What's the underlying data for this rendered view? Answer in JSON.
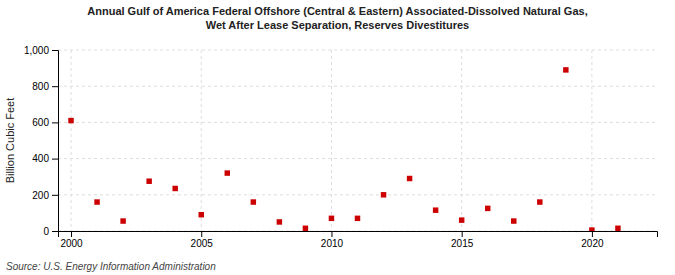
{
  "chart_data": {
    "type": "scatter",
    "title": "Annual Gulf of America Federal Offshore (Central & Eastern) Associated-Dissolved Natural Gas,\nWet After Lease Separation, Reserves Divestitures",
    "ylabel": "Billion Cubic Feet",
    "source": "Source: U.S. Energy Information Administration",
    "x": [
      2000,
      2001,
      2002,
      2003,
      2004,
      2005,
      2006,
      2007,
      2008,
      2009,
      2010,
      2011,
      2012,
      2013,
      2014,
      2015,
      2016,
      2017,
      2018,
      2019,
      2020,
      2021
    ],
    "values": [
      610,
      160,
      55,
      275,
      235,
      90,
      320,
      160,
      50,
      15,
      70,
      70,
      200,
      290,
      115,
      60,
      125,
      55,
      160,
      890,
      5,
      15
    ],
    "color": "#cc0000",
    "marker": "square",
    "xlim": [
      1999.5,
      2022.5
    ],
    "xticks": [
      2000,
      2005,
      2010,
      2015,
      2020
    ],
    "ylim": [
      0,
      1000
    ],
    "yticks": [
      0,
      200,
      400,
      600,
      800,
      {
        "value": 1000,
        "label": "1,000"
      }
    ],
    "grid": true
  }
}
